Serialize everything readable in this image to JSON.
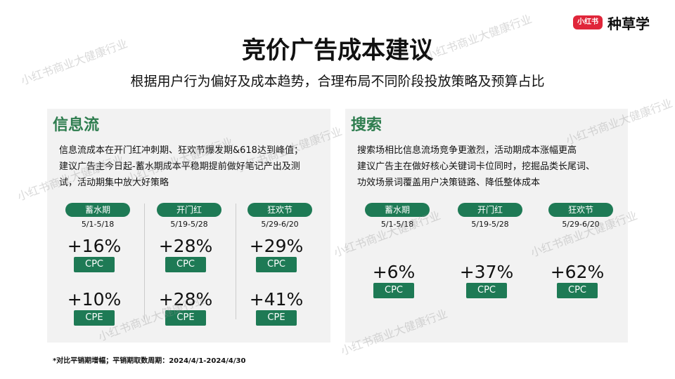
{
  "header": {
    "title": "竞价广告成本建议",
    "subtitle": "根据用户行为偏好及成本趋势，合理布局不同阶段投放策略及预算占比",
    "logo_badge": "小红书",
    "logo_text": "种草学"
  },
  "watermark": "小红书商业大健康行业",
  "panels": [
    {
      "title": "信息流",
      "description": [
        "信息流成本在开门红冲刺期、狂欢节爆发期&618达到峰值；",
        "建议广告主今日起-蓄水期成本平稳期提前做好笔记产出及测",
        "试，活动期集中放大好策略"
      ],
      "phases": [
        {
          "name": "蓄水期",
          "dates": "5/1-5/18",
          "metrics": [
            {
              "value": "+16%",
              "label": "CPC"
            },
            {
              "value": "+10%",
              "label": "CPE"
            }
          ]
        },
        {
          "name": "开门红",
          "dates": "5/19-5/28",
          "metrics": [
            {
              "value": "+28%",
              "label": "CPC"
            },
            {
              "value": "+28%",
              "label": "CPE"
            }
          ]
        },
        {
          "name": "狂欢节",
          "dates": "5/29-6/20",
          "metrics": [
            {
              "value": "+29%",
              "label": "CPC"
            },
            {
              "value": "+41%",
              "label": "CPE"
            }
          ]
        }
      ]
    },
    {
      "title": "搜索",
      "description": [
        "搜索场相比信息流场竞争更激烈，活动期成本涨幅更高",
        "建议广告主在做好核心关键词卡位同时，挖掘品类长尾词、",
        "功效场景词覆盖用户决策链路、降低整体成本"
      ],
      "phases": [
        {
          "name": "蓄水期",
          "dates": "5/1-5/18",
          "metrics": [
            {
              "value": "+6%",
              "label": "CPC"
            }
          ]
        },
        {
          "name": "开门红",
          "dates": "5/19-5/28",
          "metrics": [
            {
              "value": "+37%",
              "label": "CPC"
            }
          ]
        },
        {
          "name": "狂欢节",
          "dates": "5/29-6/20",
          "metrics": [
            {
              "value": "+62%",
              "label": "CPC"
            }
          ]
        }
      ]
    }
  ],
  "footnote": "*对比平销期增幅；平销期取数周期：2024/4/1-2024/4/30"
}
